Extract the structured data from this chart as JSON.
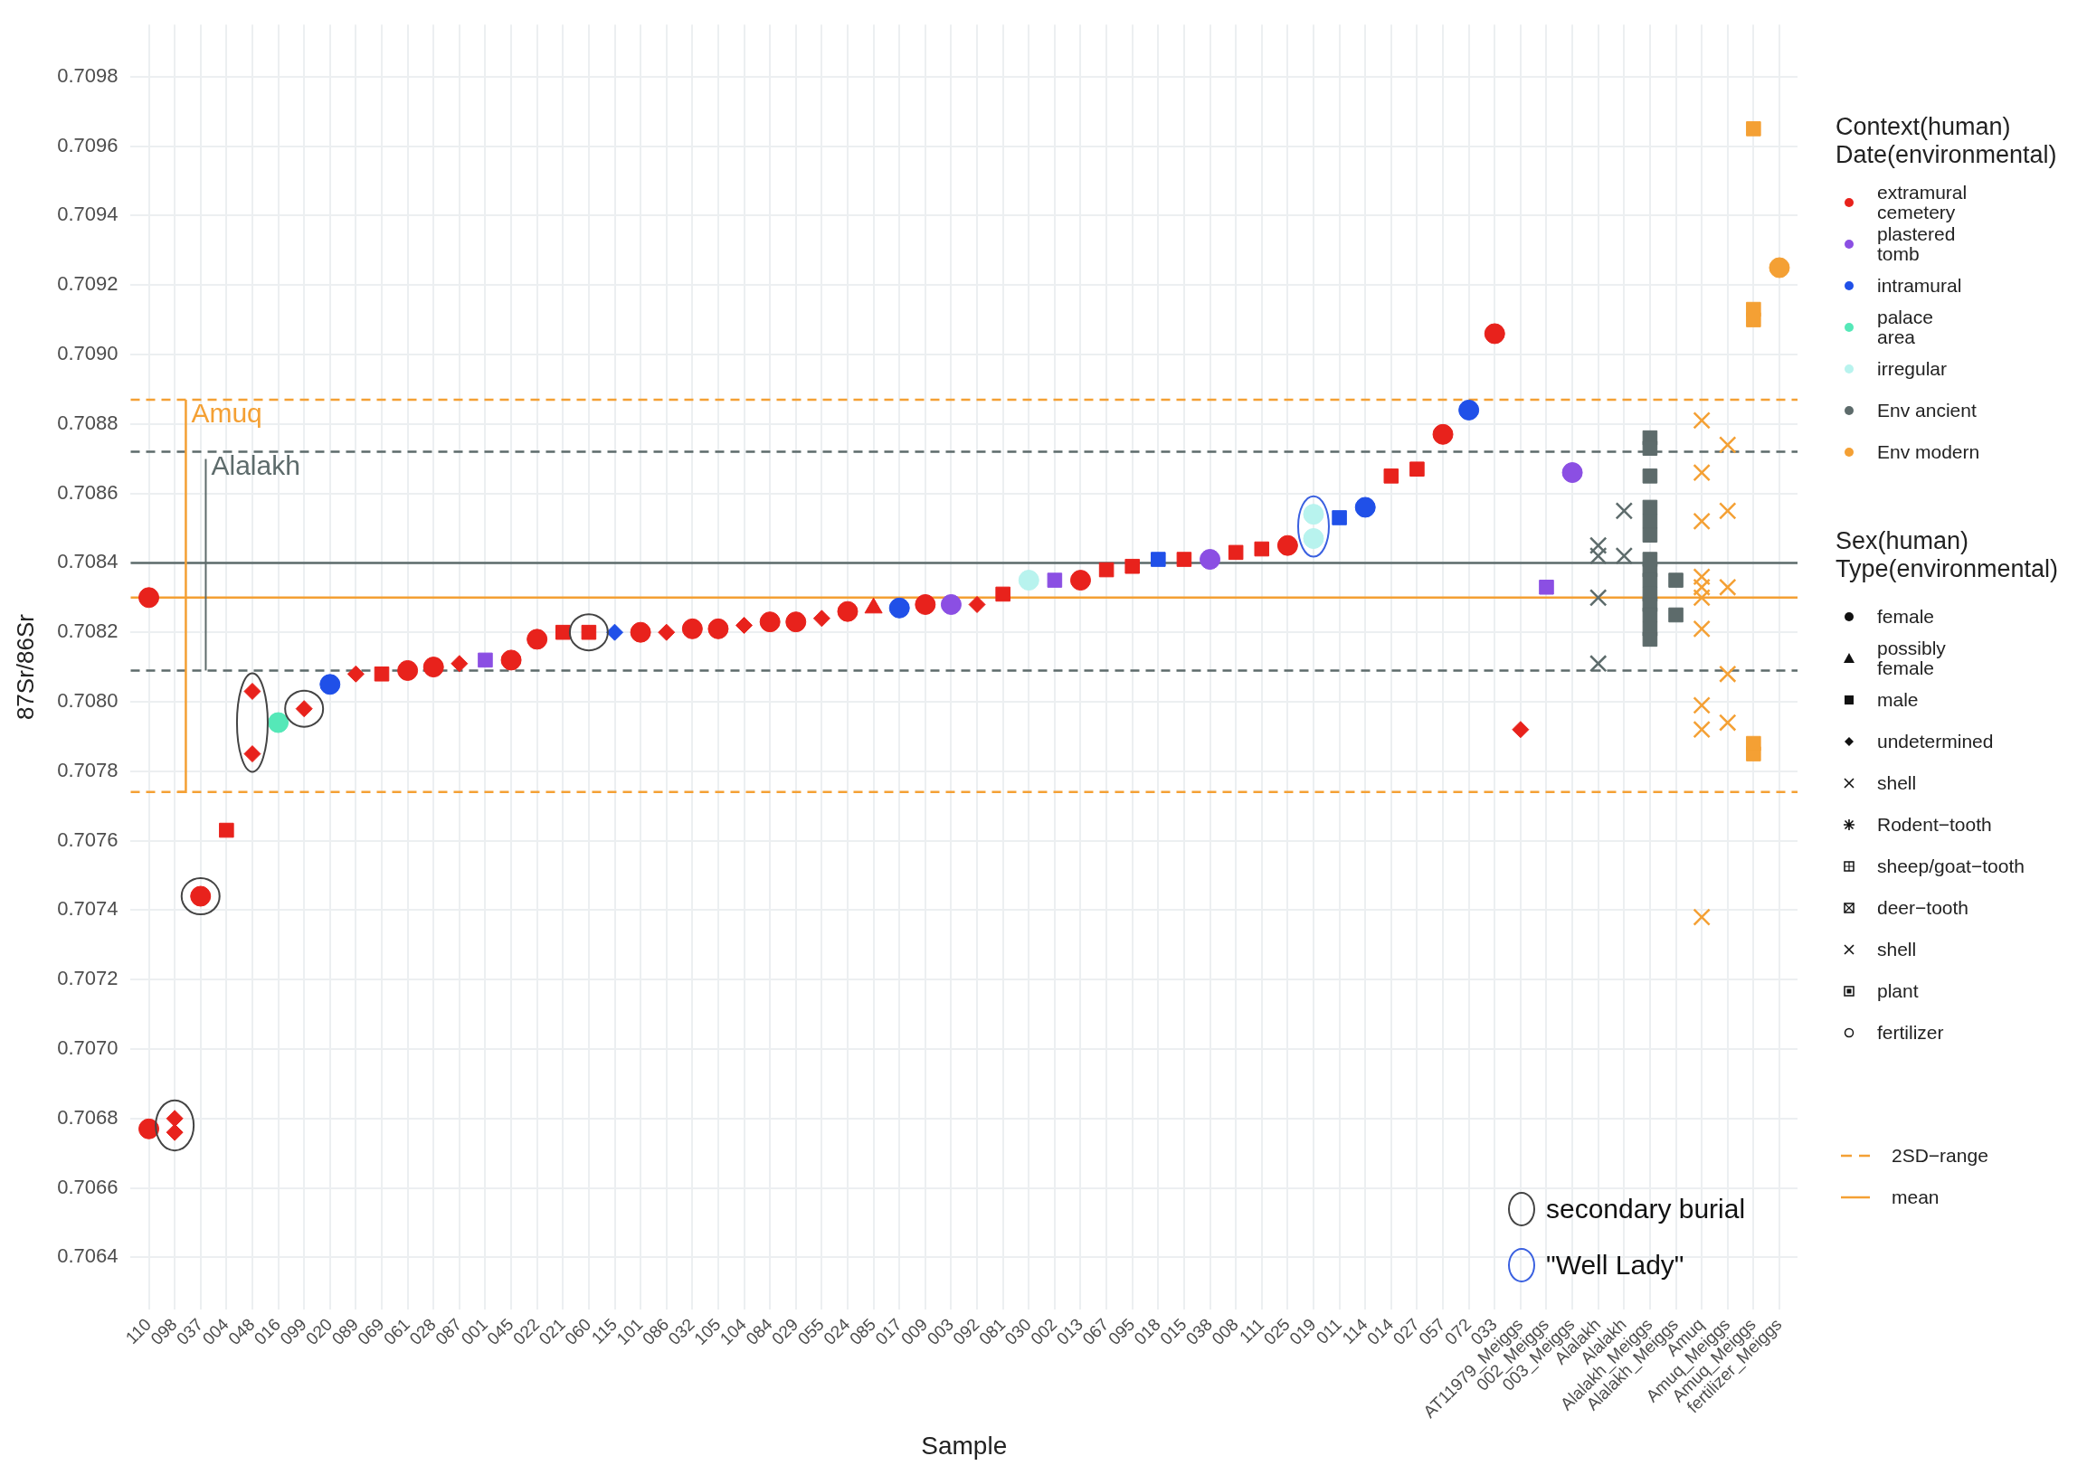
{
  "chart_data": {
    "type": "scatter",
    "xlabel": "Sample",
    "ylabel": "87Sr/86Sr",
    "legend_title": "Context(human)\nDate(environmental)",
    "legend": "right",
    "grid": true,
    "categories": [
      "110",
      "098",
      "037",
      "004",
      "048",
      "016",
      "099",
      "020",
      "089",
      "069",
      "061",
      "028",
      "087",
      "001",
      "045",
      "022",
      "021",
      "060",
      "115",
      "101",
      "086",
      "032",
      "105",
      "104",
      "084",
      "029",
      "055",
      "024",
      "085",
      "017",
      "009",
      "003",
      "092",
      "081",
      "030",
      "002",
      "013",
      "067",
      "095",
      "018",
      "015",
      "038",
      "008",
      "111",
      "025",
      "019",
      "011",
      "114",
      "014",
      "027",
      "057",
      "072",
      "033",
      "AT11979_Meiggs",
      "002_Meiggs",
      "003_Meiggs",
      "Alalakh",
      "Alalakh",
      "Alalakh_Meiggs",
      "Alalakh_Meiggs",
      "Amuq",
      "Amuq_Meiggs",
      "Amuq_Meiggs",
      "fertilizer_Meiggs"
    ],
    "ylim": [
      0.70625,
      0.70995
    ],
    "yticks": [
      0.7064,
      0.7066,
      0.7068,
      {
        "value": 0.707,
        "label": "0.7070"
      },
      0.7072,
      0.7074,
      0.7076,
      0.7078,
      {
        "value": 0.708,
        "label": "0.7080"
      },
      0.7082,
      0.7084,
      0.7086,
      0.7088,
      {
        "value": 0.709,
        "label": "0.7090"
      },
      0.7092,
      0.7094,
      0.7096,
      0.7098
    ],
    "series": [
      {
        "name": "extramural\ncemetery",
        "color": "#e8221c",
        "marker": "circle",
        "x": [
          "110",
          "110",
          "037",
          "061",
          "028",
          "045",
          "022",
          "101",
          "032",
          "105",
          "084",
          "029",
          "024",
          "009",
          "013",
          "025",
          "057",
          "033"
        ],
        "values": [
          0.7083,
          0.70677,
          0.70744,
          0.70809,
          0.7081,
          0.70812,
          0.70818,
          0.7082,
          0.70821,
          0.70821,
          0.70823,
          0.70823,
          0.70826,
          0.70828,
          0.70835,
          0.70845,
          0.70877,
          0.70906
        ]
      },
      {
        "color": "#e8221c",
        "marker": "triangle",
        "x": [
          "085"
        ],
        "values": [
          0.70827
        ]
      },
      {
        "color": "#e8221c",
        "marker": "square",
        "x": [
          "004",
          "069",
          "021",
          "060",
          "081",
          "067",
          "095",
          "015",
          "008",
          "111",
          "014",
          "027"
        ],
        "values": [
          0.70763,
          0.70808,
          0.7082,
          0.7082,
          0.70831,
          0.70838,
          0.70839,
          0.70841,
          0.70843,
          0.70844,
          0.70865,
          0.70867
        ]
      },
      {
        "color": "#e8221c",
        "marker": "diamond",
        "x": [
          "098",
          "098",
          "048",
          "048",
          "099",
          "089",
          "087",
          "086",
          "104",
          "055",
          "092",
          "AT11979_Meiggs"
        ],
        "values": [
          0.7068,
          0.70676,
          0.70803,
          0.70785,
          0.70798,
          0.70808,
          0.70811,
          0.7082,
          0.70822,
          0.70824,
          0.70828,
          0.70792
        ]
      },
      {
        "name": "plastered\ntomb",
        "color": "#8b4fe3",
        "marker": "circle",
        "x": [
          "003",
          "038",
          "003_Meiggs"
        ],
        "values": [
          0.70828,
          0.70841,
          0.70866
        ]
      },
      {
        "color": "#8b4fe3",
        "marker": "square",
        "x": [
          "001",
          "002",
          "002_Meiggs"
        ],
        "values": [
          0.70812,
          0.70835,
          0.70833
        ]
      },
      {
        "name": "intramural",
        "color": "#2050e8",
        "marker": "circle",
        "x": [
          "020",
          "017",
          "114",
          "072"
        ],
        "values": [
          0.70805,
          0.70827,
          0.70856,
          0.70884
        ]
      },
      {
        "color": "#2050e8",
        "marker": "square",
        "x": [
          "018",
          "011"
        ],
        "values": [
          0.70841,
          0.70853
        ]
      },
      {
        "color": "#2050e8",
        "marker": "diamond",
        "x": [
          "115"
        ],
        "values": [
          0.7082
        ]
      },
      {
        "name": "palace\narea",
        "color": "#55e8b8",
        "marker": "circle",
        "x": [
          "016"
        ],
        "values": [
          0.70794
        ]
      },
      {
        "name": "irregular",
        "color": "#b8f3ee",
        "marker": "circle",
        "x": [
          "030",
          "019",
          "019"
        ],
        "values": [
          0.70835,
          0.70854,
          0.70847
        ]
      },
      {
        "name": "Env ancient",
        "color": "#5d6b6b",
        "marker": "cross",
        "x": [
          "Alalakh",
          "Alalakh",
          "Alalakh",
          "Alalakh"
        ],
        "values": [
          0.70845,
          0.70842,
          0.7083,
          0.70811
        ]
      },
      {
        "color": "#5d6b6b",
        "marker": "cross",
        "values": [
          null,
          null,
          null,
          null,
          null,
          null,
          null,
          null,
          null,
          null,
          null,
          null,
          null,
          null,
          null,
          null,
          null,
          null,
          null,
          null,
          null,
          null,
          null,
          null,
          null,
          null,
          null,
          null,
          null,
          null,
          null,
          null,
          null,
          null,
          null,
          null,
          null,
          null,
          null,
          null,
          null,
          null,
          null,
          null,
          null,
          null,
          null,
          null,
          null,
          null,
          null,
          null,
          null,
          null,
          null,
          null,
          null,
          0.70855,
          null,
          null,
          null,
          null,
          null,
          null
        ]
      },
      {
        "color": "#5d6b6b",
        "marker": "cross",
        "values": [
          null,
          null,
          null,
          null,
          null,
          null,
          null,
          null,
          null,
          null,
          null,
          null,
          null,
          null,
          null,
          null,
          null,
          null,
          null,
          null,
          null,
          null,
          null,
          null,
          null,
          null,
          null,
          null,
          null,
          null,
          null,
          null,
          null,
          null,
          null,
          null,
          null,
          null,
          null,
          null,
          null,
          null,
          null,
          null,
          null,
          null,
          null,
          null,
          null,
          null,
          null,
          null,
          null,
          null,
          null,
          null,
          null,
          0.70842,
          null,
          null,
          null,
          null,
          null,
          null
        ]
      },
      {
        "color": "#5d6b6b",
        "marker": "square",
        "x": [
          "Alalakh_Meiggs",
          "Alalakh_Meiggs",
          "Alalakh_Meiggs",
          "Alalakh_Meiggs",
          "Alalakh_Meiggs",
          "Alalakh_Meiggs",
          "Alalakh_Meiggs",
          "Alalakh_Meiggs",
          "Alalakh_Meiggs",
          "Alalakh_Meiggs",
          "Alalakh_Meiggs",
          "Alalakh_Meiggs",
          "Alalakh_Meiggs",
          "Alalakh_Meiggs"
        ],
        "values": [
          0.70876,
          0.70873,
          0.70865,
          0.70856,
          0.70852,
          0.70848,
          0.70841,
          0.70838,
          0.70835,
          0.70831,
          0.70828,
          0.70825,
          0.70821,
          0.70818
        ]
      },
      {
        "color": "#5d6b6b",
        "marker": "square",
        "values": [
          null,
          null,
          null,
          null,
          null,
          null,
          null,
          null,
          null,
          null,
          null,
          null,
          null,
          null,
          null,
          null,
          null,
          null,
          null,
          null,
          null,
          null,
          null,
          null,
          null,
          null,
          null,
          null,
          null,
          null,
          null,
          null,
          null,
          null,
          null,
          null,
          null,
          null,
          null,
          null,
          null,
          null,
          null,
          null,
          null,
          null,
          null,
          null,
          null,
          null,
          null,
          null,
          null,
          null,
          null,
          null,
          null,
          null,
          null,
          0.70835,
          null,
          null,
          null,
          null
        ]
      },
      {
        "color": "#5d6b6b",
        "marker": "square",
        "values": [
          null,
          null,
          null,
          null,
          null,
          null,
          null,
          null,
          null,
          null,
          null,
          null,
          null,
          null,
          null,
          null,
          null,
          null,
          null,
          null,
          null,
          null,
          null,
          null,
          null,
          null,
          null,
          null,
          null,
          null,
          null,
          null,
          null,
          null,
          null,
          null,
          null,
          null,
          null,
          null,
          null,
          null,
          null,
          null,
          null,
          null,
          null,
          null,
          null,
          null,
          null,
          null,
          null,
          null,
          null,
          null,
          null,
          null,
          null,
          0.70825,
          null,
          null,
          null,
          null
        ]
      },
      {
        "name": "Env modern",
        "color": "#f4a034",
        "marker": "cross",
        "x": [
          "Amuq",
          "Amuq",
          "Amuq",
          "Amuq",
          "Amuq",
          "Amuq",
          "Amuq",
          "Amuq",
          "Amuq",
          "Amuq",
          "Amuq_Meiggs",
          "Amuq_Meiggs",
          "Amuq_Meiggs",
          "Amuq_Meiggs",
          "Amuq_Meiggs"
        ],
        "values": [
          0.70881,
          0.70866,
          0.70852,
          0.70836,
          0.70833,
          0.7083,
          0.70821,
          0.70799,
          0.70792,
          0.70738,
          0.70874,
          0.70855,
          0.70833,
          0.70808,
          0.70794
        ]
      },
      {
        "color": "#f4a034",
        "marker": "square",
        "values": [
          null,
          null,
          null,
          null,
          null,
          null,
          null,
          null,
          null,
          null,
          null,
          null,
          null,
          null,
          null,
          null,
          null,
          null,
          null,
          null,
          null,
          null,
          null,
          null,
          null,
          null,
          null,
          null,
          null,
          null,
          null,
          null,
          null,
          null,
          null,
          null,
          null,
          null,
          null,
          null,
          null,
          null,
          null,
          null,
          null,
          null,
          null,
          null,
          null,
          null,
          null,
          null,
          null,
          null,
          null,
          null,
          null,
          null,
          null,
          null,
          null,
          null,
          0.70965,
          null
        ]
      },
      {
        "color": "#f4a034",
        "marker": "square",
        "values": [
          null,
          null,
          null,
          null,
          null,
          null,
          null,
          null,
          null,
          null,
          null,
          null,
          null,
          null,
          null,
          null,
          null,
          null,
          null,
          null,
          null,
          null,
          null,
          null,
          null,
          null,
          null,
          null,
          null,
          null,
          null,
          null,
          null,
          null,
          null,
          null,
          null,
          null,
          null,
          null,
          null,
          null,
          null,
          null,
          null,
          null,
          null,
          null,
          null,
          null,
          null,
          null,
          null,
          null,
          null,
          null,
          null,
          null,
          null,
          null,
          null,
          null,
          0.70913,
          null
        ]
      },
      {
        "color": "#f4a034",
        "marker": "square",
        "values": [
          null,
          null,
          null,
          null,
          null,
          null,
          null,
          null,
          null,
          null,
          null,
          null,
          null,
          null,
          null,
          null,
          null,
          null,
          null,
          null,
          null,
          null,
          null,
          null,
          null,
          null,
          null,
          null,
          null,
          null,
          null,
          null,
          null,
          null,
          null,
          null,
          null,
          null,
          null,
          null,
          null,
          null,
          null,
          null,
          null,
          null,
          null,
          null,
          null,
          null,
          null,
          null,
          null,
          null,
          null,
          null,
          null,
          null,
          null,
          null,
          null,
          null,
          0.7091,
          null
        ]
      },
      {
        "color": "#f4a034",
        "marker": "square",
        "values": [
          null,
          null,
          null,
          null,
          null,
          null,
          null,
          null,
          null,
          null,
          null,
          null,
          null,
          null,
          null,
          null,
          null,
          null,
          null,
          null,
          null,
          null,
          null,
          null,
          null,
          null,
          null,
          null,
          null,
          null,
          null,
          null,
          null,
          null,
          null,
          null,
          null,
          null,
          null,
          null,
          null,
          null,
          null,
          null,
          null,
          null,
          null,
          null,
          null,
          null,
          null,
          null,
          null,
          null,
          null,
          null,
          null,
          null,
          null,
          null,
          null,
          null,
          0.70788,
          null
        ]
      },
      {
        "color": "#f4a034",
        "marker": "square",
        "values": [
          null,
          null,
          null,
          null,
          null,
          null,
          null,
          null,
          null,
          null,
          null,
          null,
          null,
          null,
          null,
          null,
          null,
          null,
          null,
          null,
          null,
          null,
          null,
          null,
          null,
          null,
          null,
          null,
          null,
          null,
          null,
          null,
          null,
          null,
          null,
          null,
          null,
          null,
          null,
          null,
          null,
          null,
          null,
          null,
          null,
          null,
          null,
          null,
          null,
          null,
          null,
          null,
          null,
          null,
          null,
          null,
          null,
          null,
          null,
          null,
          null,
          null,
          0.70785,
          null
        ]
      },
      {
        "color": "#f4a034",
        "marker": "circle",
        "x": [
          "fertilizer_Meiggs"
        ],
        "values": [
          0.70925
        ]
      }
    ],
    "ref_lines": [
      {
        "axis": "y",
        "value": 0.70887,
        "color": "#f4a034",
        "line_style": "dashed"
      },
      {
        "axis": "y",
        "value": 0.70774,
        "color": "#f4a034",
        "line_style": "dashed"
      },
      {
        "axis": "y",
        "value": 0.70872,
        "color": "#5d6b6b",
        "line_style": "dashed"
      },
      {
        "axis": "y",
        "value": 0.70809,
        "color": "#5d6b6b",
        "line_style": "dashed"
      },
      {
        "axis": "y",
        "value": 0.7084,
        "color": "#5d6b6b",
        "line_style": "solid"
      },
      {
        "axis": "y",
        "value": 0.7083,
        "color": "#f4a034",
        "line_style": "solid"
      }
    ],
    "annotations": [
      "Sex(human)\nType(environmental)",
      "female",
      "possibly\nfemale",
      "male",
      "undetermined",
      "shell",
      "Rodent−tooth",
      "sheep/goat−tooth",
      "deer−tooth",
      "shell",
      "plant",
      "fertilizer",
      "2SD−range",
      "mean",
      "secondary burial",
      "\"Well Lady\"",
      {
        "text": "Amuq",
        "y": 0.70887
      },
      {
        "text": "Alalakh",
        "y": 0.70872
      }
    ]
  }
}
